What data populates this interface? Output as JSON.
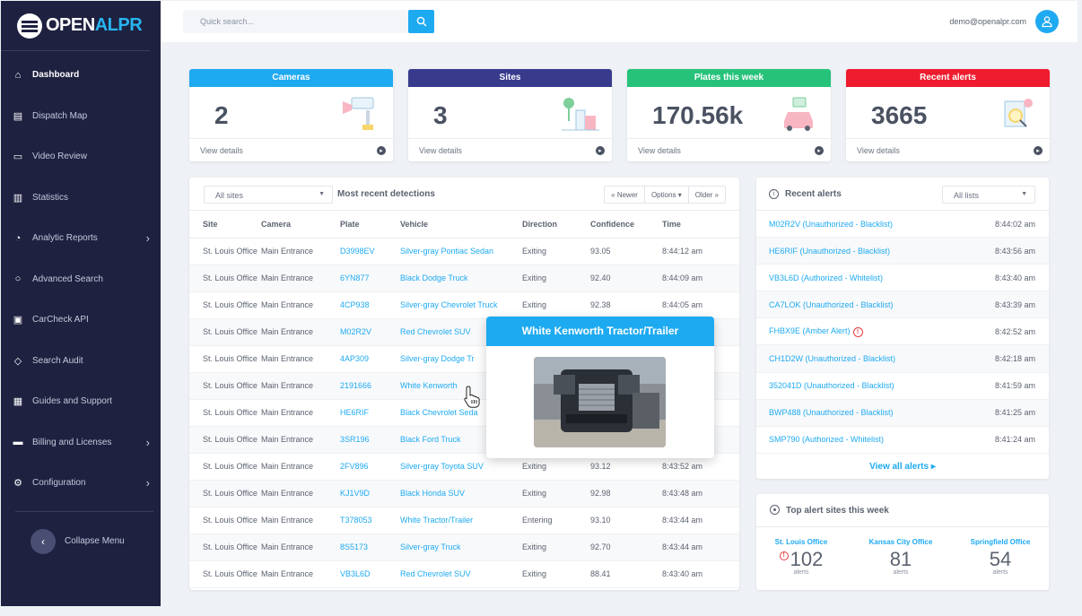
{
  "app": {
    "logo_prefix": "OPEN",
    "logo_accent": "ALPR"
  },
  "colors": {
    "primary": "#1eaaf1",
    "sidebar": "#1e2140",
    "cameras": "#1eaaf1",
    "sites": "#383b8c",
    "plates": "#27c27a",
    "alerts": "#ee1c2e",
    "danger": "#e53d3d"
  },
  "sidebar": {
    "items": [
      {
        "label": "Dashboard",
        "icon": "home-icon"
      },
      {
        "label": "Dispatch Map",
        "icon": "map-icon"
      },
      {
        "label": "Video Review",
        "icon": "video-icon"
      },
      {
        "label": "Statistics",
        "icon": "bar-chart-icon"
      },
      {
        "label": "Analytic Reports",
        "icon": "gauge-icon"
      },
      {
        "label": "Advanced Search",
        "icon": "search-icon"
      },
      {
        "label": "CarCheck API",
        "icon": "car-icon"
      },
      {
        "label": "Search Audit",
        "icon": "shield-check-icon"
      },
      {
        "label": "Guides and Support",
        "icon": "book-icon"
      },
      {
        "label": "Billing and Licenses",
        "icon": "credit-card-icon"
      },
      {
        "label": "Configuration",
        "icon": "gear-icon"
      }
    ],
    "collapse_label": "Collapse Menu"
  },
  "header": {
    "search_placeholder": "Quick search...",
    "user_email": "demo@openalpr.com"
  },
  "stats": [
    {
      "title": "Cameras",
      "value": "2",
      "link": "View details"
    },
    {
      "title": "Sites",
      "value": "3",
      "link": "View details"
    },
    {
      "title": "Plates this week",
      "value": "170.56k",
      "link": "View details"
    },
    {
      "title": "Recent alerts",
      "value": "3665",
      "link": "View details"
    }
  ],
  "detections": {
    "filter": "All sites",
    "title": "Most recent detections",
    "pager": {
      "newer": "« Newer",
      "options": "Options ▾",
      "older": "Older »"
    },
    "columns": [
      "Site",
      "Camera",
      "Plate",
      "Vehicle",
      "Direction",
      "Confidence",
      "Time"
    ],
    "rows": [
      [
        "St. Louis Office",
        "Main Entrance",
        "D3998EV",
        "Silver-gray Pontiac Sedan",
        "Exiting",
        "93.05",
        "8:44:12 am"
      ],
      [
        "St. Louis Office",
        "Main Entrance",
        "6YN877",
        "Black Dodge Truck",
        "Exiting",
        "92.40",
        "8:44:09 am"
      ],
      [
        "St. Louis Office",
        "Main Entrance",
        "4CP938",
        "Silver-gray Chevrolet Truck",
        "Exiting",
        "92.38",
        "8:44:05 am"
      ],
      [
        "St. Louis Office",
        "Main Entrance",
        "M02R2V",
        "Red Chevrolet SUV",
        "",
        "",
        ""
      ],
      [
        "St. Louis Office",
        "Main Entrance",
        "4AP309",
        "Silver-gray Dodge Tr",
        "",
        "",
        ""
      ],
      [
        "St. Louis Office",
        "Main Entrance",
        "2191666",
        "White Kenworth",
        "",
        "",
        ""
      ],
      [
        "St. Louis Office",
        "Main Entrance",
        "HE6RIF",
        "Black Chevrolet Seda",
        "",
        "",
        ""
      ],
      [
        "St. Louis Office",
        "Main Entrance",
        "3SR196",
        "Black Ford Truck",
        "",
        "",
        ""
      ],
      [
        "St. Louis Office",
        "Main Entrance",
        "2FV896",
        "Silver-gray Toyota SUV",
        "Exiting",
        "93.12",
        "8:43:52 am"
      ],
      [
        "St. Louis Office",
        "Main Entrance",
        "KJ1V9D",
        "Black Honda SUV",
        "Exiting",
        "92.98",
        "8:43:48 am"
      ],
      [
        "St. Louis Office",
        "Main Entrance",
        "T378053",
        "White Tractor/Trailer",
        "Entering",
        "93.10",
        "8:43:44 am"
      ],
      [
        "St. Louis Office",
        "Main Entrance",
        "8S5173",
        "Silver-gray Truck",
        "Exiting",
        "92.70",
        "8:43:44 am"
      ],
      [
        "St. Louis Office",
        "Main Entrance",
        "VB3L6D",
        "Red Chevrolet SUV",
        "Exiting",
        "88.41",
        "8:43:40 am"
      ]
    ]
  },
  "popup": {
    "title": "White Kenworth Tractor/Trailer"
  },
  "alerts": {
    "title": "Recent alerts",
    "filter": "All lists",
    "rows": [
      {
        "text": "M02R2V (Unauthorized - Blacklist)",
        "time": "8:44:02 am"
      },
      {
        "text": "HE6RIF (Unauthorized - Blacklist)",
        "time": "8:43:56 am"
      },
      {
        "text": "VB3L6D (Authorized - Whitelist)",
        "time": "8:43:40 am"
      },
      {
        "text": "CA7LOK (Unauthorized - Blacklist)",
        "time": "8:43:39 am"
      },
      {
        "text": "FHBX9E (Amber Alert)",
        "time": "8:42:52 am"
      },
      {
        "text": "CH1D2W (Unauthorized - Blacklist)",
        "time": "8:42:18 am"
      },
      {
        "text": "352041D (Unauthorized - Blacklist)",
        "time": "8:41:59 am"
      },
      {
        "text": "BWP488 (Unauthorized - Blacklist)",
        "time": "8:41:25 am"
      },
      {
        "text": "SMP790 (Authorized - Whitelist)",
        "time": "8:41:24 am"
      }
    ],
    "view_all": "View all alerts ▸"
  },
  "top_sites": {
    "title": "Top alert sites this week",
    "sites": [
      {
        "name": "St. Louis Office",
        "count": "102",
        "unit": "alerts"
      },
      {
        "name": "Kansas City Office",
        "count": "81",
        "unit": "alerts"
      },
      {
        "name": "Springfield Office",
        "count": "54",
        "unit": "alerts"
      }
    ]
  }
}
